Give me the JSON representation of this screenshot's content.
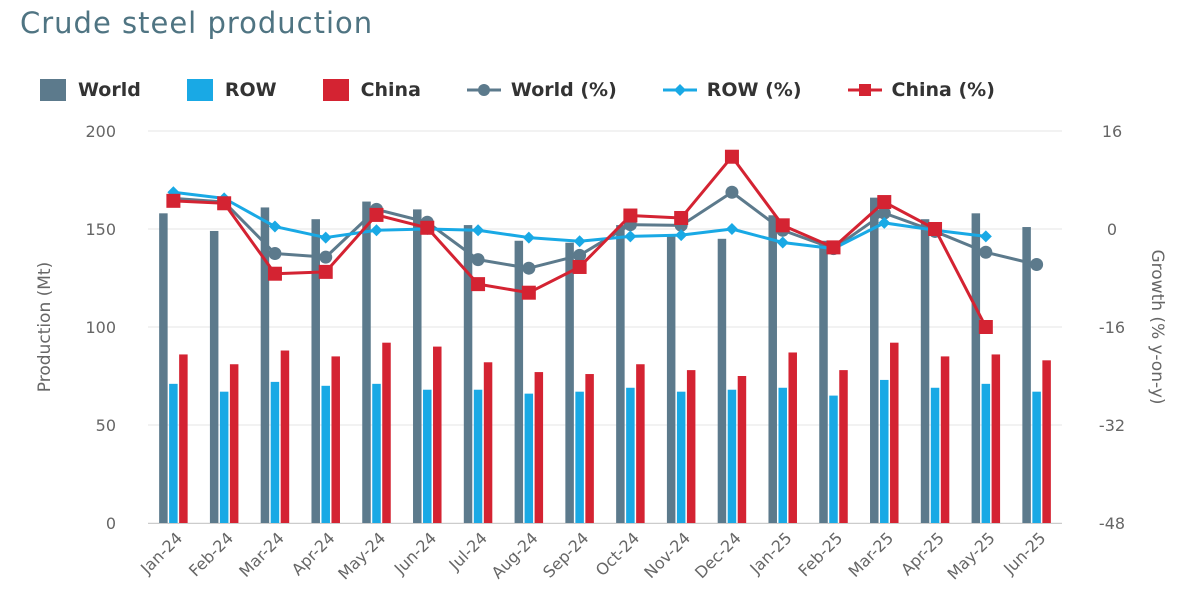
{
  "chart_data": {
    "type": "bar",
    "title": "Crude steel production",
    "categories": [
      "Jan-24",
      "Feb-24",
      "Mar-24",
      "Apr-24",
      "May-24",
      "Jun-24",
      "Jul-24",
      "Aug-24",
      "Sep-24",
      "Oct-24",
      "Nov-24",
      "Dec-24",
      "Jan-25",
      "Feb-25",
      "Mar-25",
      "Apr-25",
      "May-25",
      "Jun-25"
    ],
    "ylabel": "Production (Mt)",
    "y2label": "Growth (% y-on-y)",
    "ylim": [
      0,
      200
    ],
    "yticks": [
      0,
      50,
      100,
      150,
      200
    ],
    "y2lim": [
      -48,
      16
    ],
    "y2ticks": [
      -48,
      -32,
      -16,
      0,
      16
    ],
    "series": [
      {
        "name": "World",
        "kind": "bar",
        "axis": "left",
        "color": "#5c7a8c",
        "values": [
          158,
          149,
          161,
          155,
          164,
          160,
          152,
          144,
          143,
          152,
          147,
          145,
          157,
          144,
          166,
          155,
          158,
          151
        ]
      },
      {
        "name": "ROW",
        "kind": "bar",
        "axis": "left",
        "color": "#19a9e5",
        "values": [
          71,
          67,
          72,
          70,
          71,
          68,
          68,
          66,
          67,
          69,
          67,
          68,
          69,
          65,
          73,
          69,
          71,
          67
        ]
      },
      {
        "name": "China",
        "kind": "bar",
        "axis": "left",
        "color": "#d42332",
        "values": [
          86,
          81,
          88,
          85,
          92,
          90,
          82,
          77,
          76,
          81,
          78,
          75,
          87,
          78,
          92,
          85,
          86,
          83
        ]
      },
      {
        "name": "World (%)",
        "kind": "line",
        "marker": "circle",
        "axis": "right",
        "color": "#5c7a8c",
        "values": [
          5.0,
          4.4,
          -4.0,
          -4.6,
          3.2,
          1.1,
          -5.0,
          -6.4,
          -4.3,
          0.7,
          0.6,
          6.0,
          -0.2,
          -3.2,
          2.6,
          -0.4,
          -3.8,
          -5.8
        ]
      },
      {
        "name": "ROW (%)",
        "kind": "line",
        "marker": "diamond",
        "axis": "right",
        "color": "#19a9e5",
        "values": [
          6.0,
          5.0,
          0.4,
          -1.4,
          -0.2,
          0.0,
          -0.2,
          -1.4,
          -2.0,
          -1.2,
          -1.0,
          0.0,
          -2.2,
          -3.2,
          1.0,
          -0.2,
          -1.2,
          null
        ]
      },
      {
        "name": "China (%)",
        "kind": "line",
        "marker": "square",
        "axis": "right",
        "color": "#d42332",
        "values": [
          4.6,
          4.2,
          -7.3,
          -7.0,
          2.3,
          0.2,
          -9.0,
          -10.4,
          -6.2,
          2.2,
          1.8,
          11.8,
          0.6,
          -3.0,
          4.4,
          0.0,
          -16.0,
          null
        ]
      }
    ]
  }
}
